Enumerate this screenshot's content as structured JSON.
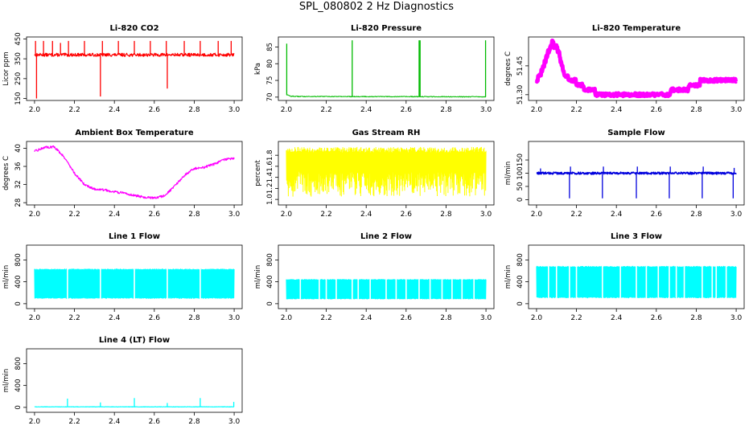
{
  "page": {
    "title": "SPL_080802  2 Hz Diagnostics"
  },
  "chart_data": [
    {
      "type": "line",
      "title": "Li-820 CO2",
      "ylabel": "Licor ppm",
      "color": "#ff0000",
      "xlim": [
        2.0,
        3.0
      ],
      "ylim": [
        140,
        460
      ],
      "xticks": [
        "2.0",
        "2.2",
        "2.4",
        "2.6",
        "2.8",
        "3.0"
      ],
      "yticks": [
        "150",
        "250",
        "350",
        "450"
      ],
      "series": [
        {
          "baseline": 370,
          "noise": 8,
          "linewidth": 1.2,
          "spikes": [
            {
              "x": 2.005,
              "y": 440
            },
            {
              "x": 2.01,
              "y": 150
            },
            {
              "x": 2.045,
              "y": 440
            },
            {
              "x": 2.09,
              "y": 440
            },
            {
              "x": 2.13,
              "y": 430
            },
            {
              "x": 2.17,
              "y": 440
            },
            {
              "x": 2.25,
              "y": 440
            },
            {
              "x": 2.33,
              "y": 160
            },
            {
              "x": 2.34,
              "y": 440
            },
            {
              "x": 2.42,
              "y": 440
            },
            {
              "x": 2.5,
              "y": 440
            },
            {
              "x": 2.58,
              "y": 440
            },
            {
              "x": 2.66,
              "y": 440
            },
            {
              "x": 2.665,
              "y": 200
            },
            {
              "x": 2.75,
              "y": 440
            },
            {
              "x": 2.83,
              "y": 440
            },
            {
              "x": 2.92,
              "y": 440
            },
            {
              "x": 2.985,
              "y": 440
            }
          ]
        }
      ]
    },
    {
      "type": "line",
      "title": "Li-820 Pressure",
      "ylabel": "kPa",
      "color": "#00bb00",
      "xlim": [
        2.0,
        3.0
      ],
      "ylim": [
        69,
        88
      ],
      "xticks": [
        "2.0",
        "2.2",
        "2.4",
        "2.6",
        "2.8",
        "3.0"
      ],
      "yticks": [
        "70",
        "75",
        "80",
        "85"
      ],
      "series": [
        {
          "baseline": 70.2,
          "noise": 0.12,
          "linewidth": 1,
          "points": [
            [
              2.0,
              70.8
            ],
            [
              2.02,
              70.3
            ],
            [
              2.05,
              70.2
            ],
            [
              3.0,
              70.1
            ]
          ],
          "spikes": [
            {
              "x": 2.002,
              "y": 86
            },
            {
              "x": 2.33,
              "y": 87
            },
            {
              "x": 2.665,
              "y": 87
            },
            {
              "x": 2.67,
              "y": 87
            },
            {
              "x": 2.998,
              "y": 87
            }
          ]
        }
      ]
    },
    {
      "type": "line",
      "title": "Li-820 Temperature",
      "ylabel": "degrees C",
      "color": "#ff00ff",
      "xlim": [
        2.0,
        3.0
      ],
      "ylim": [
        51.27,
        51.6
      ],
      "xticks": [
        "2.0",
        "2.2",
        "2.4",
        "2.6",
        "2.8",
        "3.0"
      ],
      "yticks": [
        "51.30",
        "51.45"
      ],
      "series": [
        {
          "noise": 0.008,
          "linewidth": 5,
          "step": 0.025,
          "points": [
            [
              2.0,
              51.38
            ],
            [
              2.02,
              51.4
            ],
            [
              2.05,
              51.5
            ],
            [
              2.08,
              51.57
            ],
            [
              2.11,
              51.53
            ],
            [
              2.14,
              51.4
            ],
            [
              2.2,
              51.36
            ],
            [
              2.25,
              51.33
            ],
            [
              2.3,
              51.31
            ],
            [
              2.45,
              51.3
            ],
            [
              2.65,
              51.3
            ],
            [
              2.7,
              51.33
            ],
            [
              2.75,
              51.33
            ],
            [
              2.78,
              51.35
            ],
            [
              2.8,
              51.35
            ],
            [
              2.83,
              51.37
            ],
            [
              2.9,
              51.37
            ],
            [
              3.0,
              51.37
            ]
          ]
        }
      ]
    },
    {
      "type": "line",
      "title": "Ambient Box Temperature",
      "ylabel": "degrees C",
      "color": "#ff00ff",
      "xlim": [
        2.0,
        3.0
      ],
      "ylim": [
        27.5,
        41.5
      ],
      "xticks": [
        "2.0",
        "2.2",
        "2.4",
        "2.6",
        "2.8",
        "3.0"
      ],
      "yticks": [
        "28",
        "32",
        "36",
        "40"
      ],
      "series": [
        {
          "noise": 0.25,
          "linewidth": 1.2,
          "points": [
            [
              2.0,
              39.3
            ],
            [
              2.05,
              40.2
            ],
            [
              2.1,
              40.3
            ],
            [
              2.15,
              38.0
            ],
            [
              2.2,
              34.5
            ],
            [
              2.25,
              32.0
            ],
            [
              2.3,
              31.0
            ],
            [
              2.35,
              30.8
            ],
            [
              2.4,
              30.4
            ],
            [
              2.45,
              30.1
            ],
            [
              2.5,
              29.6
            ],
            [
              2.55,
              29.2
            ],
            [
              2.6,
              29.0
            ],
            [
              2.65,
              29.5
            ],
            [
              2.7,
              31.5
            ],
            [
              2.75,
              34.0
            ],
            [
              2.8,
              35.5
            ],
            [
              2.85,
              35.8
            ],
            [
              2.9,
              36.5
            ],
            [
              2.95,
              37.5
            ],
            [
              3.0,
              37.8
            ]
          ]
        }
      ]
    },
    {
      "type": "line",
      "title": "Gas Stream RH",
      "ylabel": "percent",
      "color": "#ffff00",
      "xlim": [
        2.0,
        3.0
      ],
      "ylim": [
        0.9,
        2.05
      ],
      "xticks": [
        "2.0",
        "2.2",
        "2.4",
        "2.6",
        "2.8",
        "3.0"
      ],
      "yticks": [
        "1.0",
        "1.2",
        "1.4",
        "1.6",
        "1.8"
      ],
      "series": [
        {
          "band": [
            1.05,
            1.95
          ],
          "core": [
            1.3,
            1.85
          ],
          "linewidth": 1
        }
      ]
    },
    {
      "type": "line",
      "title": "Sample Flow",
      "ylabel": "ml/min",
      "color": "#0000dd",
      "xlim": [
        2.0,
        3.0
      ],
      "ylim": [
        -20,
        220
      ],
      "xticks": [
        "2.0",
        "2.2",
        "2.4",
        "2.6",
        "2.8",
        "3.0"
      ],
      "yticks": [
        "0",
        "50",
        "100",
        "150"
      ],
      "series": [
        {
          "baseline": 100,
          "noise": 4,
          "linewidth": 1.6,
          "spikes": [
            {
              "x": 2.02,
              "y": 118
            },
            {
              "x": 2.165,
              "y": 5
            },
            {
              "x": 2.17,
              "y": 125
            },
            {
              "x": 2.33,
              "y": 5
            },
            {
              "x": 2.335,
              "y": 125
            },
            {
              "x": 2.5,
              "y": 5
            },
            {
              "x": 2.505,
              "y": 125
            },
            {
              "x": 2.665,
              "y": 5
            },
            {
              "x": 2.67,
              "y": 125
            },
            {
              "x": 2.83,
              "y": 5
            },
            {
              "x": 2.835,
              "y": 125
            },
            {
              "x": 2.985,
              "y": 5
            },
            {
              "x": 2.99,
              "y": 120
            }
          ]
        }
      ]
    },
    {
      "type": "line",
      "title": "Line 1 Flow",
      "ylabel": "ml/min",
      "color": "#00ffff",
      "xlim": [
        2.0,
        3.0
      ],
      "ylim": [
        -90,
        1070
      ],
      "xticks": [
        "2.0",
        "2.2",
        "2.4",
        "2.6",
        "2.8",
        "3.0"
      ],
      "yticks": [
        "0",
        "400",
        "800"
      ],
      "series": [
        {
          "band": [
            90,
            640
          ],
          "linewidth": 1,
          "gaps": [
            2.165,
            2.33,
            2.5,
            2.665,
            2.83
          ],
          "spikes": [
            {
              "x": 2.998,
              "y": 580
            }
          ]
        }
      ]
    },
    {
      "type": "line",
      "title": "Line 2 Flow",
      "ylabel": "ml/min",
      "color": "#00ffff",
      "xlim": [
        2.0,
        3.0
      ],
      "ylim": [
        -90,
        1070
      ],
      "xticks": [
        "2.0",
        "2.2",
        "2.4",
        "2.6",
        "2.8",
        "3.0"
      ],
      "yticks": [
        "0",
        "400",
        "800"
      ],
      "series": [
        {
          "band": [
            80,
            450
          ],
          "linewidth": 1,
          "gaps": [
            2.07,
            2.165,
            2.2,
            2.25,
            2.33,
            2.36,
            2.42,
            2.5,
            2.55,
            2.6,
            2.665,
            2.72,
            2.78,
            2.83,
            2.88,
            2.94
          ]
        }
      ]
    },
    {
      "type": "line",
      "title": "Line 3 Flow",
      "ylabel": "ml/min",
      "color": "#00ffff",
      "xlim": [
        2.0,
        3.0
      ],
      "ylim": [
        -90,
        1070
      ],
      "xticks": [
        "2.0",
        "2.2",
        "2.4",
        "2.6",
        "2.8",
        "3.0"
      ],
      "yticks": [
        "0",
        "400",
        "800"
      ],
      "series": [
        {
          "band": [
            100,
            690
          ],
          "linewidth": 1,
          "gaps": [
            2.06,
            2.1,
            2.165,
            2.2,
            2.33,
            2.42,
            2.5,
            2.55,
            2.61,
            2.665,
            2.7,
            2.74,
            2.83,
            2.88,
            2.9,
            2.95
          ]
        }
      ]
    },
    {
      "type": "line",
      "title": "Line 4 (LT) Flow",
      "ylabel": "ml/min",
      "color": "#00ffff",
      "xlim": [
        2.0,
        3.0
      ],
      "ylim": [
        -90,
        1070
      ],
      "xticks": [
        "2.0",
        "2.2",
        "2.4",
        "2.6",
        "2.8",
        "3.0"
      ],
      "yticks": [
        "0",
        "400",
        "800"
      ],
      "series": [
        {
          "baseline": 10,
          "noise": 3,
          "linewidth": 1.2,
          "spikes": [
            {
              "x": 2.165,
              "y": 160
            },
            {
              "x": 2.33,
              "y": 90
            },
            {
              "x": 2.5,
              "y": 170
            },
            {
              "x": 2.665,
              "y": 80
            },
            {
              "x": 2.83,
              "y": 170
            },
            {
              "x": 2.998,
              "y": 100
            }
          ]
        }
      ]
    }
  ]
}
